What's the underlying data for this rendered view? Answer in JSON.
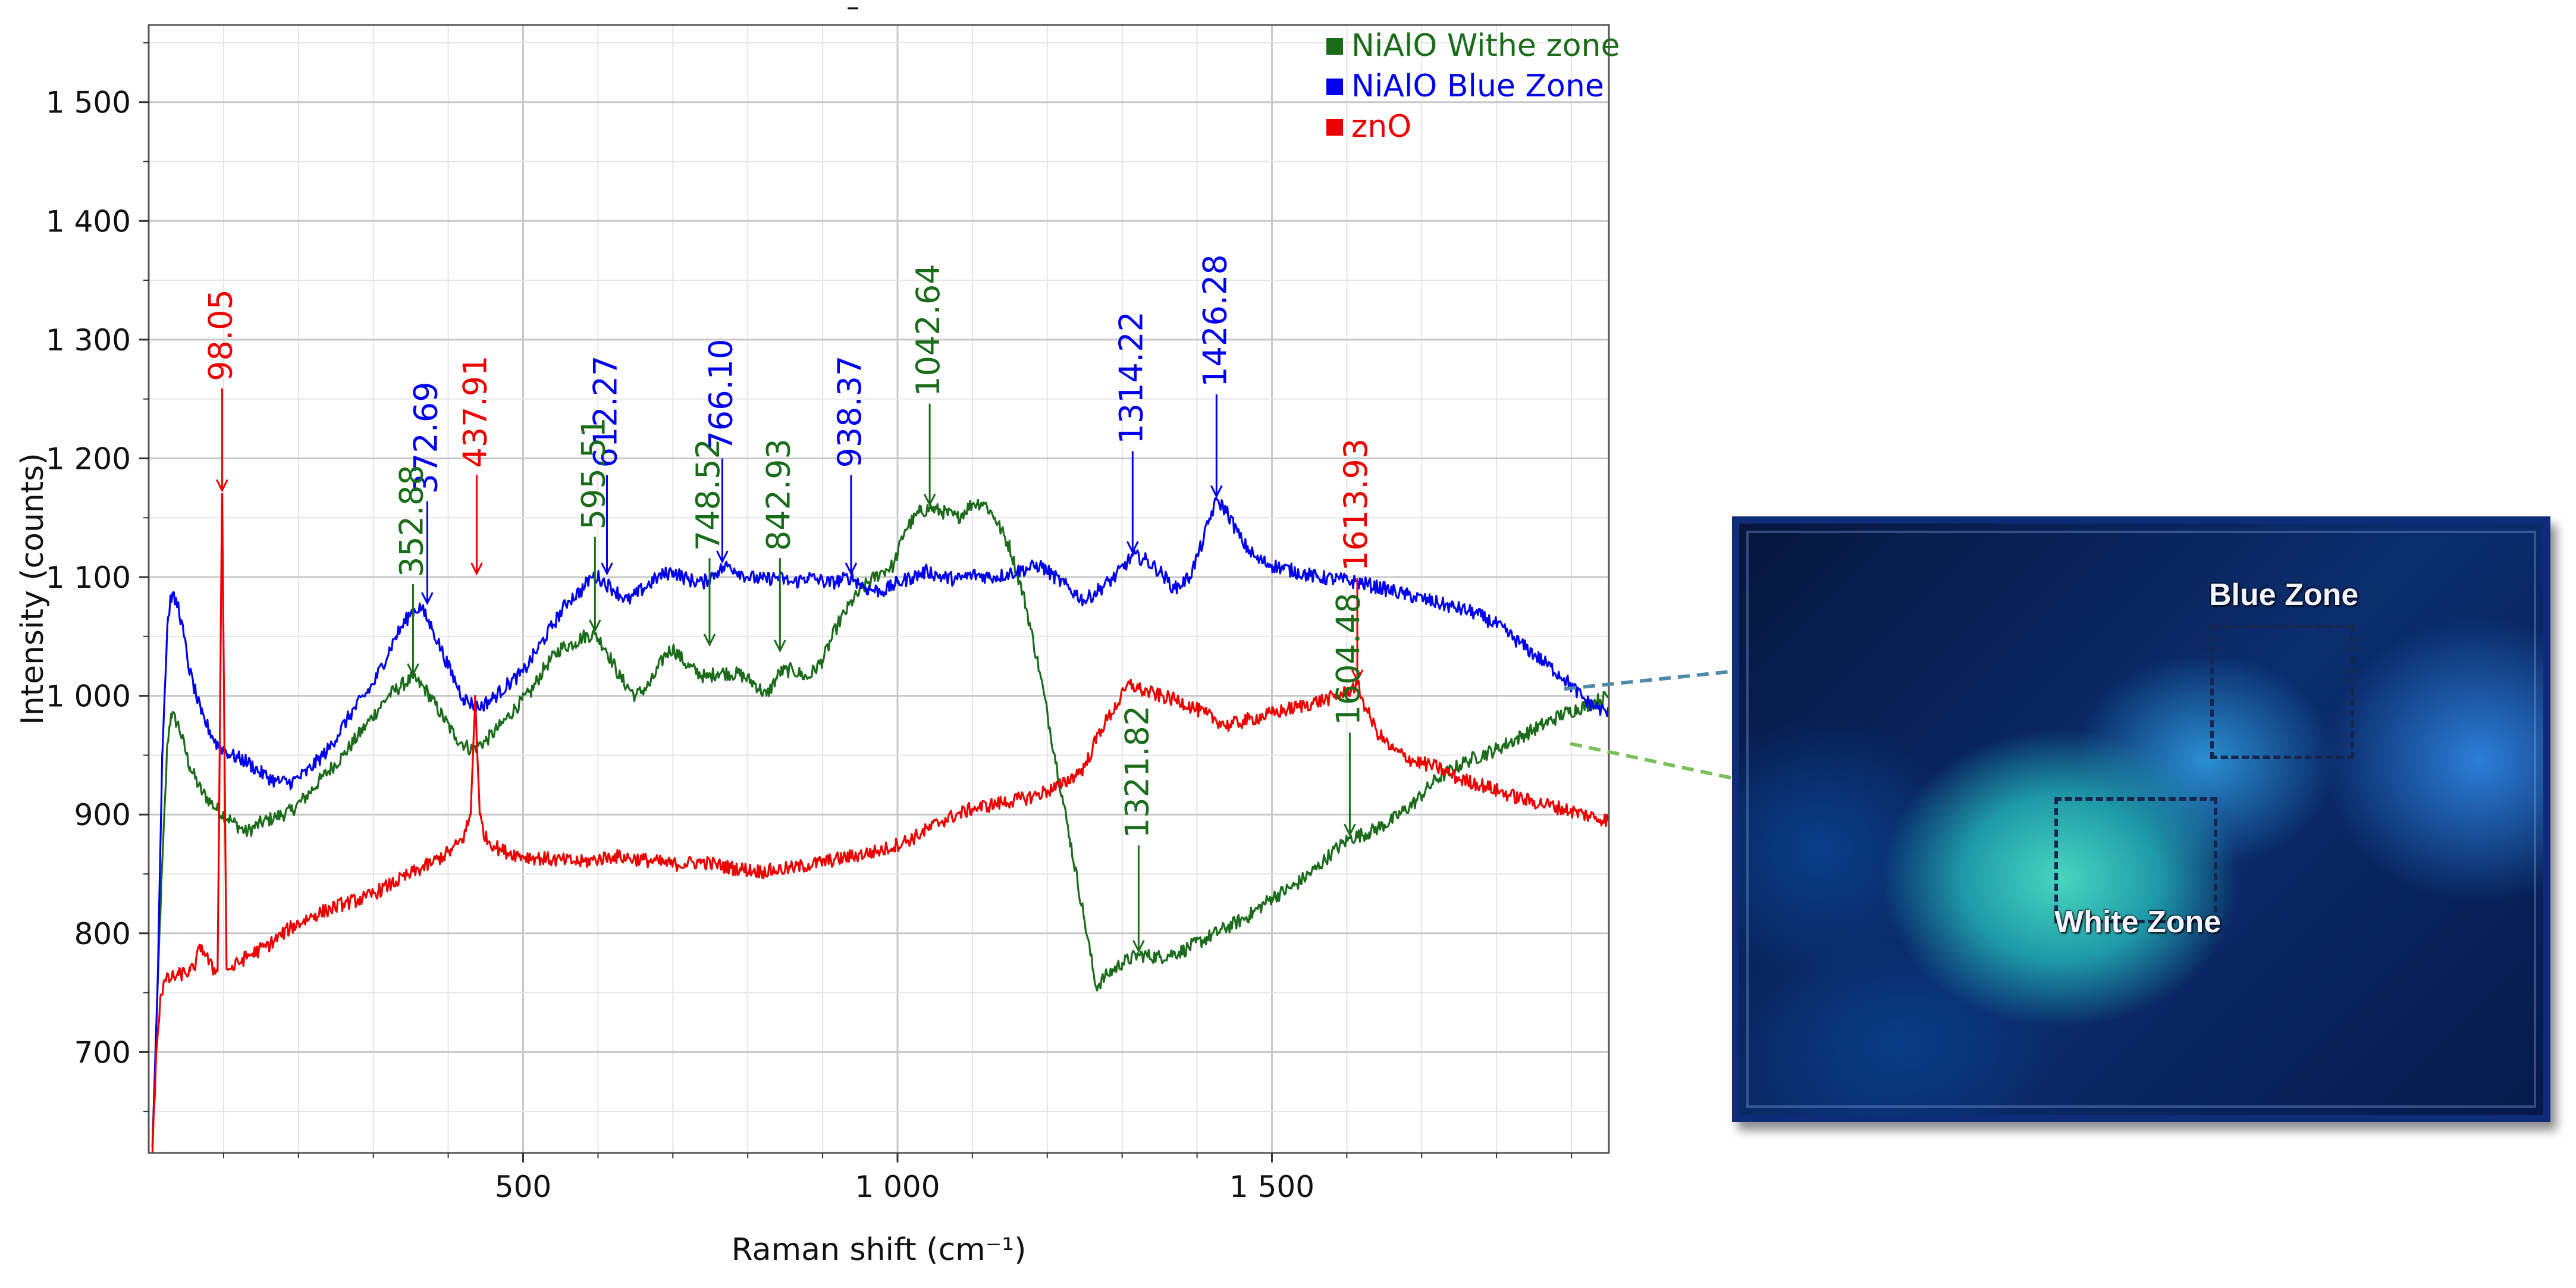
{
  "chart_data": {
    "type": "line",
    "title": "",
    "xlabel": "Raman shift (cm⁻¹)",
    "ylabel": "Intensity (counts)",
    "xlim": [
      0,
      1950
    ],
    "ylim": [
      615,
      1565
    ],
    "x_ticks": [
      {
        "value": 500,
        "label": "500"
      },
      {
        "value": 1000,
        "label": "1 000"
      },
      {
        "value": 1500,
        "label": "1 500"
      }
    ],
    "y_ticks": [
      {
        "value": 700,
        "label": "700"
      },
      {
        "value": 800,
        "label": "800"
      },
      {
        "value": 900,
        "label": "900"
      },
      {
        "value": 1000,
        "label": "1 000"
      },
      {
        "value": 1100,
        "label": "1 100"
      },
      {
        "value": 1200,
        "label": "1 200"
      },
      {
        "value": 1300,
        "label": "1 300"
      },
      {
        "value": 1400,
        "label": "1 400"
      },
      {
        "value": 1500,
        "label": "1 500"
      }
    ],
    "grid": true,
    "legend_position": "top-right",
    "series": [
      {
        "name": "NiAlO Withe zone",
        "color": "#1a6b1a",
        "points": [
          [
            5,
            620
          ],
          [
            15,
            810
          ],
          [
            25,
            960
          ],
          [
            30,
            985
          ],
          [
            40,
            975
          ],
          [
            55,
            940
          ],
          [
            70,
            920
          ],
          [
            90,
            905
          ],
          [
            110,
            895
          ],
          [
            130,
            885
          ],
          [
            150,
            893
          ],
          [
            170,
            898
          ],
          [
            190,
            903
          ],
          [
            210,
            915
          ],
          [
            230,
            930
          ],
          [
            260,
            950
          ],
          [
            290,
            975
          ],
          [
            320,
            1000
          ],
          [
            340,
            1010
          ],
          [
            353,
            1015
          ],
          [
            370,
            1005
          ],
          [
            390,
            985
          ],
          [
            410,
            965
          ],
          [
            430,
            955
          ],
          [
            450,
            962
          ],
          [
            470,
            975
          ],
          [
            490,
            990
          ],
          [
            510,
            1003
          ],
          [
            530,
            1025
          ],
          [
            550,
            1040
          ],
          [
            570,
            1045
          ],
          [
            580,
            1050
          ],
          [
            596,
            1052
          ],
          [
            610,
            1040
          ],
          [
            630,
            1015
          ],
          [
            650,
            1000
          ],
          [
            670,
            1010
          ],
          [
            690,
            1035
          ],
          [
            700,
            1040
          ],
          [
            720,
            1025
          ],
          [
            745,
            1015
          ],
          [
            760,
            1020
          ],
          [
            790,
            1018
          ],
          [
            810,
            1010
          ],
          [
            825,
            1000
          ],
          [
            843,
            1020
          ],
          [
            860,
            1022
          ],
          [
            880,
            1015
          ],
          [
            900,
            1030
          ],
          [
            920,
            1060
          ],
          [
            940,
            1080
          ],
          [
            960,
            1095
          ],
          [
            980,
            1105
          ],
          [
            995,
            1110
          ],
          [
            1010,
            1140
          ],
          [
            1030,
            1155
          ],
          [
            1043,
            1158
          ],
          [
            1060,
            1155
          ],
          [
            1080,
            1150
          ],
          [
            1100,
            1162
          ],
          [
            1115,
            1163
          ],
          [
            1130,
            1150
          ],
          [
            1150,
            1125
          ],
          [
            1170,
            1080
          ],
          [
            1190,
            1020
          ],
          [
            1210,
            950
          ],
          [
            1230,
            880
          ],
          [
            1250,
            810
          ],
          [
            1265,
            755
          ],
          [
            1280,
            765
          ],
          [
            1300,
            775
          ],
          [
            1322,
            782
          ],
          [
            1350,
            780
          ],
          [
            1380,
            785
          ],
          [
            1410,
            795
          ],
          [
            1440,
            805
          ],
          [
            1470,
            815
          ],
          [
            1500,
            830
          ],
          [
            1530,
            840
          ],
          [
            1560,
            855
          ],
          [
            1580,
            868
          ],
          [
            1604,
            880
          ],
          [
            1630,
            885
          ],
          [
            1660,
            895
          ],
          [
            1690,
            910
          ],
          [
            1720,
            930
          ],
          [
            1760,
            945
          ],
          [
            1800,
            955
          ],
          [
            1830,
            965
          ],
          [
            1860,
            975
          ],
          [
            1890,
            985
          ],
          [
            1920,
            992
          ],
          [
            1950,
            1000
          ]
        ]
      },
      {
        "name": "NiAlO Blue Zone",
        "color": "#0000ee",
        "points": [
          [
            5,
            620
          ],
          [
            12,
            760
          ],
          [
            18,
            950
          ],
          [
            25,
            1060
          ],
          [
            30,
            1085
          ],
          [
            40,
            1075
          ],
          [
            55,
            1020
          ],
          [
            70,
            985
          ],
          [
            90,
            960
          ],
          [
            110,
            950
          ],
          [
            130,
            945
          ],
          [
            150,
            935
          ],
          [
            170,
            928
          ],
          [
            190,
            927
          ],
          [
            210,
            935
          ],
          [
            240,
            955
          ],
          [
            270,
            985
          ],
          [
            300,
            1010
          ],
          [
            330,
            1050
          ],
          [
            350,
            1070
          ],
          [
            363,
            1075
          ],
          [
            380,
            1055
          ],
          [
            400,
            1025
          ],
          [
            420,
            998
          ],
          [
            440,
            990
          ],
          [
            460,
            998
          ],
          [
            480,
            1010
          ],
          [
            500,
            1020
          ],
          [
            520,
            1040
          ],
          [
            540,
            1060
          ],
          [
            560,
            1080
          ],
          [
            580,
            1090
          ],
          [
            590,
            1100
          ],
          [
            600,
            1100
          ],
          [
            620,
            1090
          ],
          [
            640,
            1080
          ],
          [
            660,
            1090
          ],
          [
            680,
            1100
          ],
          [
            700,
            1105
          ],
          [
            720,
            1098
          ],
          [
            740,
            1095
          ],
          [
            760,
            1105
          ],
          [
            775,
            1110
          ],
          [
            800,
            1100
          ],
          [
            820,
            1098
          ],
          [
            840,
            1100
          ],
          [
            860,
            1095
          ],
          [
            880,
            1100
          ],
          [
            910,
            1095
          ],
          [
            938,
            1100
          ],
          [
            960,
            1090
          ],
          [
            980,
            1088
          ],
          [
            1000,
            1095
          ],
          [
            1020,
            1100
          ],
          [
            1040,
            1105
          ],
          [
            1060,
            1100
          ],
          [
            1080,
            1098
          ],
          [
            1100,
            1102
          ],
          [
            1130,
            1100
          ],
          [
            1160,
            1105
          ],
          [
            1190,
            1110
          ],
          [
            1210,
            1100
          ],
          [
            1230,
            1090
          ],
          [
            1250,
            1080
          ],
          [
            1270,
            1090
          ],
          [
            1290,
            1100
          ],
          [
            1314,
            1118
          ],
          [
            1330,
            1115
          ],
          [
            1350,
            1105
          ],
          [
            1370,
            1090
          ],
          [
            1390,
            1100
          ],
          [
            1405,
            1125
          ],
          [
            1420,
            1155
          ],
          [
            1427,
            1165
          ],
          [
            1440,
            1155
          ],
          [
            1460,
            1130
          ],
          [
            1480,
            1115
          ],
          [
            1500,
            1110
          ],
          [
            1530,
            1105
          ],
          [
            1560,
            1100
          ],
          [
            1590,
            1098
          ],
          [
            1620,
            1095
          ],
          [
            1650,
            1090
          ],
          [
            1680,
            1085
          ],
          [
            1710,
            1080
          ],
          [
            1740,
            1075
          ],
          [
            1770,
            1070
          ],
          [
            1800,
            1060
          ],
          [
            1830,
            1045
          ],
          [
            1860,
            1030
          ],
          [
            1890,
            1015
          ],
          [
            1920,
            995
          ],
          [
            1950,
            985
          ]
        ]
      },
      {
        "name": "znO",
        "color": "#ee0000",
        "points": [
          [
            5,
            615
          ],
          [
            10,
            700
          ],
          [
            16,
            748
          ],
          [
            22,
            760
          ],
          [
            40,
            765
          ],
          [
            55,
            768
          ],
          [
            60,
            770
          ],
          [
            70,
            790
          ],
          [
            85,
            770
          ],
          [
            92,
            768
          ],
          [
            98,
            1170
          ],
          [
            104,
            770
          ],
          [
            110,
            770
          ],
          [
            130,
            780
          ],
          [
            160,
            790
          ],
          [
            190,
            805
          ],
          [
            220,
            815
          ],
          [
            260,
            825
          ],
          [
            290,
            830
          ],
          [
            320,
            840
          ],
          [
            350,
            850
          ],
          [
            380,
            860
          ],
          [
            405,
            870
          ],
          [
            420,
            880
          ],
          [
            430,
            900
          ],
          [
            436,
            1000
          ],
          [
            442,
            900
          ],
          [
            450,
            880
          ],
          [
            470,
            870
          ],
          [
            500,
            865
          ],
          [
            540,
            862
          ],
          [
            580,
            860
          ],
          [
            620,
            865
          ],
          [
            660,
            862
          ],
          [
            700,
            858
          ],
          [
            740,
            860
          ],
          [
            780,
            855
          ],
          [
            820,
            852
          ],
          [
            860,
            855
          ],
          [
            900,
            860
          ],
          [
            940,
            865
          ],
          [
            980,
            870
          ],
          [
            1020,
            880
          ],
          [
            1060,
            895
          ],
          [
            1100,
            905
          ],
          [
            1140,
            910
          ],
          [
            1180,
            915
          ],
          [
            1220,
            925
          ],
          [
            1250,
            940
          ],
          [
            1270,
            970
          ],
          [
            1290,
            990
          ],
          [
            1310,
            1010
          ],
          [
            1325,
            1005
          ],
          [
            1350,
            1000
          ],
          [
            1380,
            995
          ],
          [
            1410,
            985
          ],
          [
            1440,
            975
          ],
          [
            1470,
            980
          ],
          [
            1500,
            985
          ],
          [
            1530,
            990
          ],
          [
            1560,
            995
          ],
          [
            1590,
            1000
          ],
          [
            1605,
            1005
          ],
          [
            1614,
            1010
          ],
          [
            1625,
            990
          ],
          [
            1640,
            970
          ],
          [
            1660,
            955
          ],
          [
            1690,
            945
          ],
          [
            1720,
            940
          ],
          [
            1750,
            930
          ],
          [
            1780,
            925
          ],
          [
            1810,
            918
          ],
          [
            1840,
            912
          ],
          [
            1870,
            908
          ],
          [
            1900,
            903
          ],
          [
            1930,
            898
          ],
          [
            1950,
            895
          ]
        ]
      }
    ],
    "annotations": [
      {
        "label": "98.05",
        "series": 2,
        "x": 98,
        "y": 1170,
        "text_y": 1265
      },
      {
        "label": "437.91",
        "series": 2,
        "x": 438,
        "y": 1100,
        "text_y": 1192
      },
      {
        "label": "1613.93",
        "series": 2,
        "x": 1614,
        "y": 1010,
        "text_y": 1105
      },
      {
        "label": "372.69",
        "series": 1,
        "x": 372,
        "y": 1075,
        "text_y": 1170
      },
      {
        "label": "612.27",
        "series": 1,
        "x": 612,
        "y": 1100,
        "text_y": 1192
      },
      {
        "label": "766.10",
        "series": 1,
        "x": 766,
        "y": 1110,
        "text_y": 1206
      },
      {
        "label": "938.37",
        "series": 1,
        "x": 938,
        "y": 1100,
        "text_y": 1192
      },
      {
        "label": "1314.22",
        "series": 1,
        "x": 1314,
        "y": 1118,
        "text_y": 1212
      },
      {
        "label": "1426.28",
        "series": 1,
        "x": 1426,
        "y": 1165,
        "text_y": 1260
      },
      {
        "label": "352.88",
        "series": 0,
        "x": 353,
        "y": 1015,
        "text_y": 1100
      },
      {
        "label": "595.51",
        "series": 0,
        "x": 596,
        "y": 1052,
        "text_y": 1140
      },
      {
        "label": "748.52",
        "series": 0,
        "x": 749,
        "y": 1040,
        "text_y": 1122
      },
      {
        "label": "842.93",
        "series": 0,
        "x": 843,
        "y": 1035,
        "text_y": 1122
      },
      {
        "label": "1042.64",
        "series": 0,
        "x": 1043,
        "y": 1158,
        "text_y": 1252
      },
      {
        "label": "1321.82",
        "series": 0,
        "x": 1322,
        "y": 782,
        "text_y": 880
      },
      {
        "label": "1604.48",
        "series": 0,
        "x": 1604,
        "y": 880,
        "text_y": 975
      }
    ],
    "top_marker": "–"
  },
  "micrograph": {
    "labels": {
      "blue_zone": "Blue Zone",
      "white_zone": "White Zone"
    }
  }
}
